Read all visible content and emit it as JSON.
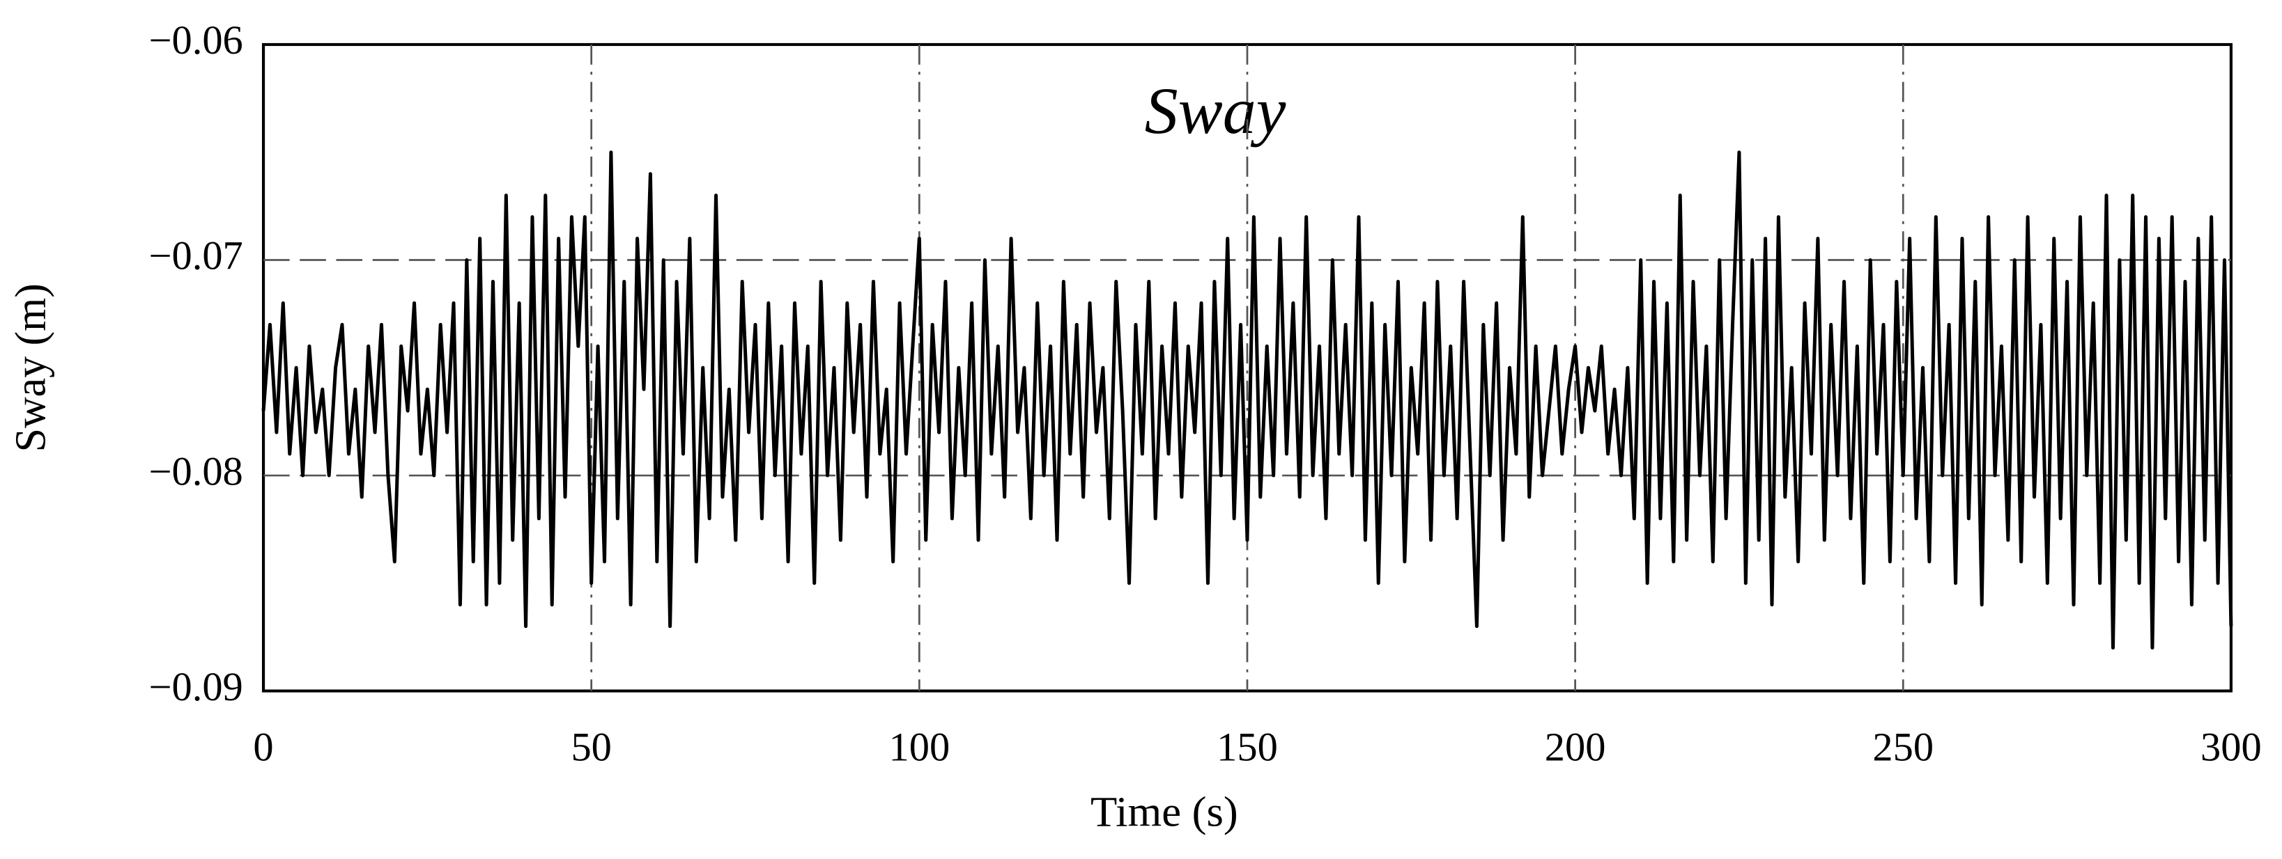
{
  "chart_data": {
    "type": "line",
    "title": "Sway",
    "xlabel": "Time (s)",
    "ylabel": "Sway (m)",
    "xlim": [
      0,
      300
    ],
    "xticks": [
      0,
      50,
      100,
      150,
      200,
      250,
      300
    ],
    "ylim": [
      -0.09,
      -0.06
    ],
    "yticks": [
      {
        "value": -0.09,
        "label": "−0.09"
      },
      {
        "value": -0.08,
        "label": "−0.08"
      },
      {
        "value": -0.07,
        "label": "−0.07"
      },
      {
        "value": -0.06,
        "label": "−0.06"
      }
    ],
    "grid": true,
    "x": [
      0,
      1,
      2,
      3,
      4,
      5,
      6,
      7,
      8,
      9,
      10,
      11,
      12,
      13,
      14,
      15,
      16,
      17,
      18,
      19,
      20,
      21,
      22,
      23,
      24,
      25,
      26,
      27,
      28,
      29,
      30,
      31,
      32,
      33,
      34,
      35,
      36,
      37,
      38,
      39,
      40,
      41,
      42,
      43,
      44,
      45,
      46,
      47,
      48,
      49,
      50,
      51,
      52,
      53,
      54,
      55,
      56,
      57,
      58,
      59,
      60,
      61,
      62,
      63,
      64,
      65,
      66,
      67,
      68,
      69,
      70,
      71,
      72,
      73,
      74,
      75,
      76,
      77,
      78,
      79,
      80,
      81,
      82,
      83,
      84,
      85,
      86,
      87,
      88,
      89,
      90,
      91,
      92,
      93,
      94,
      95,
      96,
      97,
      98,
      99,
      100,
      101,
      102,
      103,
      104,
      105,
      106,
      107,
      108,
      109,
      110,
      111,
      112,
      113,
      114,
      115,
      116,
      117,
      118,
      119,
      120,
      121,
      122,
      123,
      124,
      125,
      126,
      127,
      128,
      129,
      130,
      131,
      132,
      133,
      134,
      135,
      136,
      137,
      138,
      139,
      140,
      141,
      142,
      143,
      144,
      145,
      146,
      147,
      148,
      149,
      150,
      151,
      152,
      153,
      154,
      155,
      156,
      157,
      158,
      159,
      160,
      161,
      162,
      163,
      164,
      165,
      166,
      167,
      168,
      169,
      170,
      171,
      172,
      173,
      174,
      175,
      176,
      177,
      178,
      179,
      180,
      181,
      182,
      183,
      184,
      185,
      186,
      187,
      188,
      189,
      190,
      191,
      192,
      193,
      194,
      195,
      196,
      197,
      198,
      199,
      200,
      201,
      202,
      203,
      204,
      205,
      206,
      207,
      208,
      209,
      210,
      211,
      212,
      213,
      214,
      215,
      216,
      217,
      218,
      219,
      220,
      221,
      222,
      223,
      224,
      225,
      226,
      227,
      228,
      229,
      230,
      231,
      232,
      233,
      234,
      235,
      236,
      237,
      238,
      239,
      240,
      241,
      242,
      243,
      244,
      245,
      246,
      247,
      248,
      249,
      250,
      251,
      252,
      253,
      254,
      255,
      256,
      257,
      258,
      259,
      260,
      261,
      262,
      263,
      264,
      265,
      266,
      267,
      268,
      269,
      270,
      271,
      272,
      273,
      274,
      275,
      276,
      277,
      278,
      279,
      280,
      281,
      282,
      283,
      284,
      285,
      286,
      287,
      288,
      289,
      290,
      291,
      292,
      293,
      294,
      295,
      296,
      297,
      298,
      299,
      300
    ],
    "series": [
      {
        "color": "#000000",
        "values": [
          -0.077,
          -0.073,
          -0.078,
          -0.072,
          -0.079,
          -0.075,
          -0.08,
          -0.074,
          -0.078,
          -0.076,
          -0.08,
          -0.075,
          -0.073,
          -0.079,
          -0.076,
          -0.081,
          -0.074,
          -0.078,
          -0.073,
          -0.08,
          -0.084,
          -0.074,
          -0.077,
          -0.072,
          -0.079,
          -0.076,
          -0.08,
          -0.073,
          -0.078,
          -0.072,
          -0.086,
          -0.07,
          -0.084,
          -0.069,
          -0.086,
          -0.071,
          -0.085,
          -0.067,
          -0.083,
          -0.072,
          -0.087,
          -0.068,
          -0.082,
          -0.067,
          -0.086,
          -0.069,
          -0.081,
          -0.068,
          -0.074,
          -0.068,
          -0.085,
          -0.074,
          -0.084,
          -0.065,
          -0.082,
          -0.071,
          -0.086,
          -0.069,
          -0.076,
          -0.066,
          -0.084,
          -0.07,
          -0.087,
          -0.071,
          -0.079,
          -0.069,
          -0.084,
          -0.075,
          -0.082,
          -0.067,
          -0.081,
          -0.076,
          -0.083,
          -0.071,
          -0.078,
          -0.073,
          -0.082,
          -0.072,
          -0.08,
          -0.074,
          -0.084,
          -0.072,
          -0.079,
          -0.074,
          -0.085,
          -0.071,
          -0.08,
          -0.075,
          -0.083,
          -0.072,
          -0.078,
          -0.073,
          -0.081,
          -0.071,
          -0.079,
          -0.076,
          -0.084,
          -0.072,
          -0.079,
          -0.074,
          -0.069,
          -0.083,
          -0.073,
          -0.078,
          -0.071,
          -0.082,
          -0.075,
          -0.08,
          -0.072,
          -0.083,
          -0.07,
          -0.079,
          -0.074,
          -0.081,
          -0.069,
          -0.078,
          -0.075,
          -0.082,
          -0.072,
          -0.08,
          -0.074,
          -0.083,
          -0.071,
          -0.079,
          -0.073,
          -0.081,
          -0.072,
          -0.078,
          -0.075,
          -0.082,
          -0.071,
          -0.077,
          -0.085,
          -0.073,
          -0.079,
          -0.071,
          -0.082,
          -0.074,
          -0.079,
          -0.072,
          -0.081,
          -0.074,
          -0.078,
          -0.072,
          -0.085,
          -0.071,
          -0.08,
          -0.069,
          -0.082,
          -0.073,
          -0.083,
          -0.068,
          -0.081,
          -0.074,
          -0.08,
          -0.069,
          -0.079,
          -0.072,
          -0.081,
          -0.068,
          -0.08,
          -0.074,
          -0.082,
          -0.07,
          -0.079,
          -0.073,
          -0.08,
          -0.068,
          -0.083,
          -0.072,
          -0.085,
          -0.073,
          -0.08,
          -0.071,
          -0.084,
          -0.075,
          -0.079,
          -0.072,
          -0.083,
          -0.071,
          -0.08,
          -0.074,
          -0.082,
          -0.071,
          -0.079,
          -0.087,
          -0.073,
          -0.08,
          -0.072,
          -0.083,
          -0.075,
          -0.079,
          -0.068,
          -0.081,
          -0.074,
          -0.08,
          -0.077,
          -0.074,
          -0.079,
          -0.076,
          -0.074,
          -0.078,
          -0.075,
          -0.077,
          -0.074,
          -0.079,
          -0.076,
          -0.08,
          -0.075,
          -0.082,
          -0.07,
          -0.085,
          -0.071,
          -0.082,
          -0.072,
          -0.084,
          -0.067,
          -0.083,
          -0.071,
          -0.08,
          -0.074,
          -0.084,
          -0.07,
          -0.082,
          -0.073,
          -0.065,
          -0.085,
          -0.07,
          -0.083,
          -0.069,
          -0.086,
          -0.068,
          -0.081,
          -0.075,
          -0.084,
          -0.072,
          -0.079,
          -0.069,
          -0.083,
          -0.073,
          -0.08,
          -0.071,
          -0.082,
          -0.074,
          -0.085,
          -0.07,
          -0.079,
          -0.073,
          -0.084,
          -0.071,
          -0.08,
          -0.069,
          -0.082,
          -0.075,
          -0.084,
          -0.068,
          -0.08,
          -0.073,
          -0.085,
          -0.069,
          -0.082,
          -0.071,
          -0.086,
          -0.068,
          -0.08,
          -0.074,
          -0.083,
          -0.07,
          -0.084,
          -0.068,
          -0.081,
          -0.073,
          -0.085,
          -0.069,
          -0.082,
          -0.071,
          -0.086,
          -0.068,
          -0.08,
          -0.072,
          -0.085,
          -0.067,
          -0.088,
          -0.07,
          -0.083,
          -0.067,
          -0.085,
          -0.068,
          -0.088,
          -0.069,
          -0.082,
          -0.068,
          -0.084,
          -0.071,
          -0.086,
          -0.069,
          -0.083,
          -0.068,
          -0.085,
          -0.07,
          -0.087
        ]
      }
    ]
  }
}
